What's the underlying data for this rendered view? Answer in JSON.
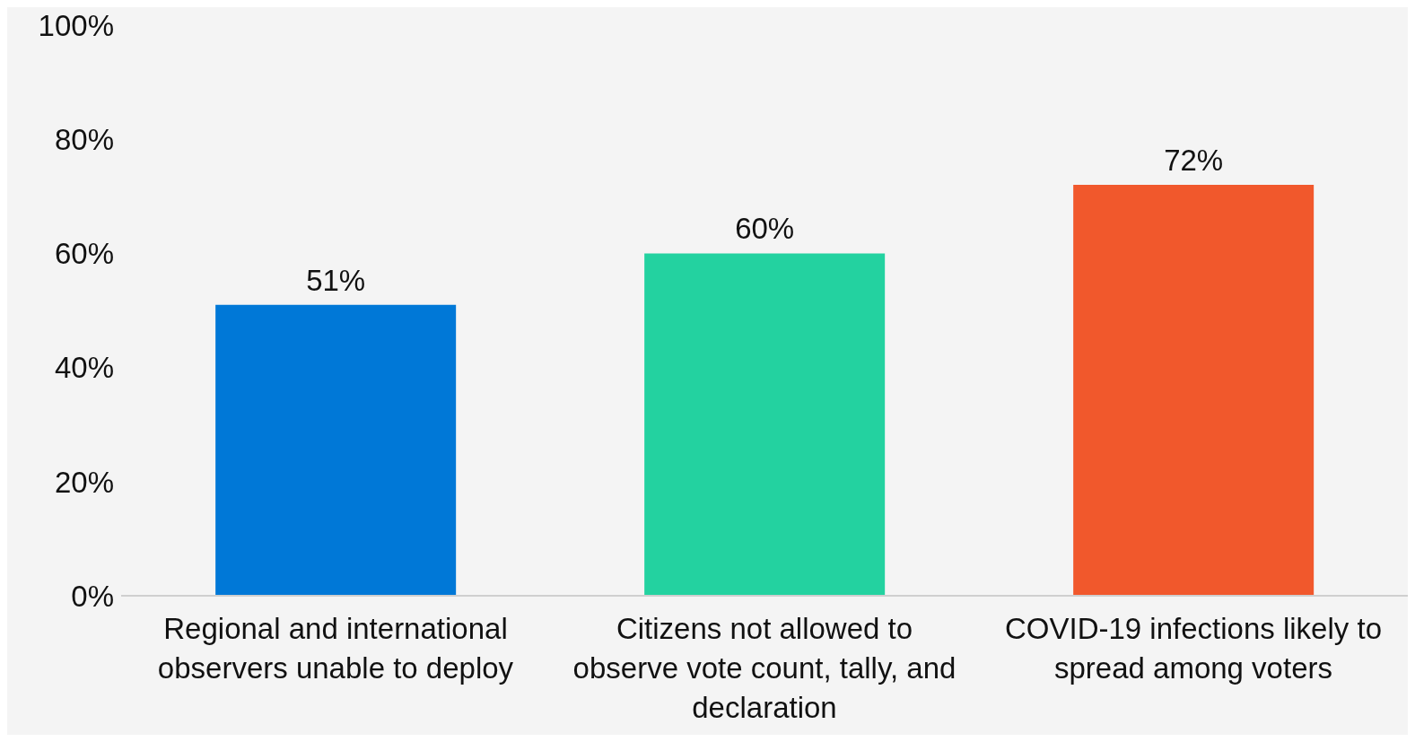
{
  "chart_data": {
    "type": "bar",
    "categories": [
      "Regional and international observers unable to deploy",
      "Citizens not allowed to observe vote count, tally, and declaration",
      "COVID-19 infections likely to spread among voters"
    ],
    "values": [
      51,
      60,
      72
    ],
    "colors": [
      "#0078d7",
      "#23d2a0",
      "#f1582c"
    ],
    "value_labels": [
      "51%",
      "60%",
      "72%"
    ],
    "ylim": [
      0,
      100
    ],
    "yticks": [
      {
        "value": 0,
        "label": "0%"
      },
      {
        "value": 20,
        "label": "20%"
      },
      {
        "value": 40,
        "label": "40%"
      },
      {
        "value": 60,
        "label": "60%"
      },
      {
        "value": 80,
        "label": "80%"
      },
      {
        "value": 100,
        "label": "100%"
      }
    ],
    "grid": false,
    "legend": false
  }
}
